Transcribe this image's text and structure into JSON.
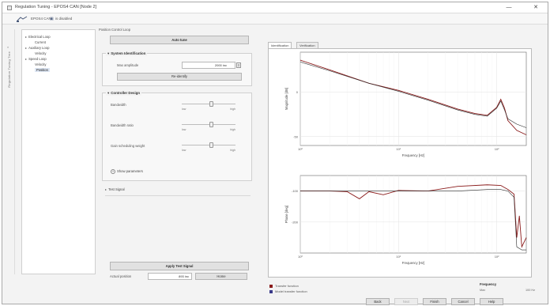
{
  "window": {
    "title": "Regulation Tuning - EPOS4 CAN [Node 2]",
    "controls": {
      "minimize": "—",
      "maximize": "□",
      "close": "✕"
    }
  },
  "toolbar": {
    "device_label": "EPOS4 CAN",
    "enabled_label": "is disabled"
  },
  "sidebar_tab": {
    "label": "Regulation Tuning Tree"
  },
  "tree": {
    "items": [
      {
        "label": "Electrical Loop",
        "level": 0,
        "expander": "▸"
      },
      {
        "label": "Current",
        "level": 1,
        "expander": ""
      },
      {
        "label": "Auxiliary Loop",
        "level": 0,
        "expander": "▸"
      },
      {
        "label": "Velocity",
        "level": 1,
        "expander": ""
      },
      {
        "label": "Speed Loop",
        "level": 0,
        "expander": "▸"
      },
      {
        "label": "Velocity",
        "level": 1,
        "expander": ""
      },
      {
        "label": "Position",
        "level": 1,
        "expander": "",
        "selected": true
      }
    ]
  },
  "params": {
    "section_caption": "Position Control Loop",
    "auto_tune_button": "Auto tune",
    "system_identification": {
      "title": "System Identification",
      "max_amplitude_label": "Max amplitude",
      "max_amplitude_value": "2000 inc",
      "identify_button": "Re-identify"
    },
    "controller_design": {
      "title": "Controller Design",
      "sliders": [
        {
          "label": "Bandwidth",
          "lo": "low",
          "hi": "high",
          "level": 0.55
        },
        {
          "label": "Bandwidth ratio",
          "lo": "low",
          "hi": "high",
          "level": 0.55
        },
        {
          "label": "Gain scheduling weight",
          "lo": "low",
          "hi": "high",
          "level": 0.55
        }
      ],
      "show_parameters": "Show parameters",
      "show_parameters_icon": "expand-circle-icon"
    },
    "test_signal": {
      "title": "Test Signal",
      "expander": "▸"
    },
    "apply_button": "Apply Test Signal",
    "actual_position_label": "Actual position",
    "actual_position_value": "893 inc",
    "home_button": "Home"
  },
  "tabs": [
    {
      "label": "Identification",
      "active": true
    },
    {
      "label": "Verification",
      "active": false
    }
  ],
  "chart_data": [
    {
      "type": "line",
      "title": "",
      "xlabel": "Frequency [Hz]",
      "ylabel": "Magnitude [dB]",
      "xscale": "log",
      "xlim": [
        1,
        200
      ],
      "xticks": [
        "10⁰",
        "10¹",
        "10²"
      ],
      "yticks": [
        "0",
        "-50"
      ],
      "grid": true,
      "series": [
        {
          "color": "#8b1c1c",
          "x": [
            1,
            2,
            5,
            10,
            20,
            40,
            60,
            80,
            100,
            110,
            120,
            130,
            160,
            200
          ],
          "values": [
            36,
            25,
            10,
            2,
            -8,
            -19,
            -24,
            -26,
            -17,
            -8,
            -18,
            -32,
            -43,
            -48
          ]
        },
        {
          "color": "#2a2a2a",
          "x": [
            1,
            2,
            5,
            10,
            20,
            40,
            60,
            80,
            100,
            110,
            120,
            130,
            160,
            200
          ],
          "values": [
            34,
            24,
            10,
            1,
            -9,
            -20,
            -25,
            -27,
            -18,
            -10,
            -20,
            -30,
            -36,
            -40
          ]
        }
      ]
    },
    {
      "type": "line",
      "title": "",
      "xlabel": "Frequency [Hz]",
      "ylabel": "Phase [deg]",
      "xscale": "log",
      "xlim": [
        1,
        200
      ],
      "xticks": [
        "10⁰",
        "10¹",
        "10²"
      ],
      "yticks": [
        "-100",
        "-200"
      ],
      "grid": true,
      "series": [
        {
          "color": "#8b1c1c",
          "x": [
            1,
            2,
            3,
            4,
            5,
            7,
            10,
            20,
            40,
            80,
            110,
            130,
            150,
            160,
            170,
            180,
            200
          ],
          "values": [
            -100,
            -100,
            -102,
            -125,
            -102,
            -112,
            -98,
            -100,
            -85,
            -80,
            -82,
            -95,
            -110,
            -250,
            -180,
            -280,
            -250
          ]
        },
        {
          "color": "#2a2a2a",
          "x": [
            1,
            2,
            5,
            10,
            20,
            40,
            80,
            110,
            130,
            150,
            160,
            180,
            200
          ],
          "values": [
            -100,
            -100,
            -100,
            -100,
            -100,
            -100,
            -95,
            -95,
            -100,
            -120,
            -280,
            -290,
            -290
          ]
        }
      ]
    }
  ],
  "legend": [
    {
      "label": "Transfer function",
      "color": "#8b1c1c"
    },
    {
      "label": "Model transfer function",
      "color": "#3a3a8a"
    }
  ],
  "frequency_box": {
    "title": "Frequency",
    "label": "Max",
    "value": "100 Hz"
  },
  "footer": {
    "buttons": [
      {
        "label": "Back",
        "enabled": true
      },
      {
        "label": "Next",
        "enabled": false
      },
      {
        "label": "Finish",
        "enabled": true
      },
      {
        "label": "Cancel",
        "enabled": true
      },
      {
        "label": "Help",
        "enabled": true
      }
    ]
  }
}
